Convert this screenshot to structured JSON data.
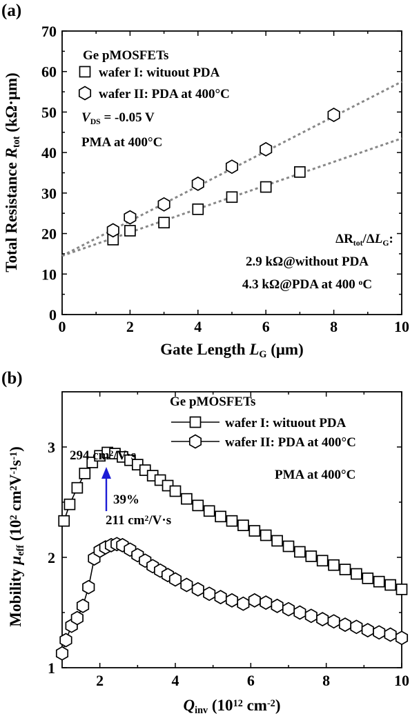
{
  "chart_data": [
    {
      "type": "scatter",
      "panel_label": "(a)",
      "xlabel_parts": [
        "Gate Length ",
        "L",
        "G",
        " (μm)"
      ],
      "ylabel_parts": [
        "Total Resistance ",
        "R",
        "tot",
        " (kΩ·μm)"
      ],
      "xlim": [
        0,
        10
      ],
      "ylim": [
        0,
        70
      ],
      "xticks": [
        0,
        2,
        4,
        6,
        8,
        10
      ],
      "yticks": [
        0,
        10,
        20,
        30,
        40,
        50,
        60,
        70
      ],
      "legend": {
        "title": "Ge pMOSFETs",
        "entries": [
          "wafer I: wituout PDA",
          "wafer II: PDA at 400°C"
        ],
        "placement": "top-left"
      },
      "annotations": {
        "vds_parts": [
          "V",
          "DS",
          " = -0.05 V"
        ],
        "pma": "PMA at 400°C",
        "slope_title_parts": [
          "ΔR",
          "tot",
          "/Δ",
          "L",
          "G",
          ":"
        ],
        "slope_line1": "2.9 kΩ@without PDA",
        "slope_line2_parts": [
          "4.3 kΩ@PDA at 400 ",
          "o",
          "C"
        ]
      },
      "series": [
        {
          "name": "wafer I: wituout PDA",
          "marker": "square",
          "x": [
            1.5,
            2,
            3,
            4,
            5,
            6,
            7
          ],
          "y": [
            18.5,
            20.7,
            22.7,
            26.0,
            29.0,
            31.5,
            35.2
          ]
        },
        {
          "name": "wafer II: PDA at 400°C",
          "marker": "hexagon",
          "x": [
            1.5,
            2,
            3,
            4,
            5,
            6,
            8
          ],
          "y": [
            20.8,
            24.0,
            27.2,
            32.3,
            36.5,
            40.8,
            49.3
          ]
        }
      ],
      "fit_lines": [
        {
          "series": "wafer I: wituout PDA",
          "intercept": 14.5,
          "slope": 2.9
        },
        {
          "series": "wafer II: PDA at 400°C",
          "intercept": 14.5,
          "slope": 4.3
        }
      ],
      "grid": false
    },
    {
      "type": "line",
      "panel_label": "(b)",
      "xlabel_parts": [
        "Q",
        "inv",
        " (10",
        "12",
        " cm",
        "-2",
        ")"
      ],
      "ylabel_parts": [
        "Mobility ",
        "μ",
        "eff",
        " (10",
        "2",
        " cm",
        "2",
        "V",
        "-1",
        "s",
        "-1",
        ")"
      ],
      "xlim": [
        1,
        10
      ],
      "ylim": [
        1,
        3.5
      ],
      "xticks": [
        2,
        4,
        6,
        8,
        10
      ],
      "yticks": [
        1,
        2,
        3
      ],
      "legend": {
        "title": "Ge pMOSFETs",
        "entries": [
          "wafer I: wituout PDA",
          "wafer II: PDA at 400°C"
        ],
        "placement": "top-right"
      },
      "annotations": {
        "pma": "PMA at 400°C",
        "peak1_parts": [
          "294 cm",
          "2",
          "/V·s"
        ],
        "peak2_parts": [
          "211 cm",
          "2",
          "/V·s"
        ],
        "increase": "39%",
        "arrow_color": "#1c1cd6"
      },
      "series": [
        {
          "name": "wafer I: wituout PDA",
          "marker": "square",
          "x": [
            1.05,
            1.2,
            1.4,
            1.6,
            1.8,
            2.0,
            2.2,
            2.4,
            2.6,
            2.8,
            3.0,
            3.2,
            3.4,
            3.6,
            3.8,
            4.0,
            4.3,
            4.6,
            4.9,
            5.2,
            5.5,
            5.8,
            6.1,
            6.4,
            6.7,
            7.0,
            7.3,
            7.6,
            7.9,
            8.2,
            8.5,
            8.8,
            9.1,
            9.4,
            9.7,
            10.0
          ],
          "y": [
            2.33,
            2.48,
            2.63,
            2.76,
            2.86,
            2.92,
            2.95,
            2.94,
            2.91,
            2.88,
            2.84,
            2.79,
            2.74,
            2.7,
            2.65,
            2.6,
            2.53,
            2.47,
            2.42,
            2.37,
            2.33,
            2.29,
            2.24,
            2.2,
            2.15,
            2.1,
            2.05,
            2.01,
            1.97,
            1.93,
            1.89,
            1.85,
            1.81,
            1.78,
            1.75,
            1.71
          ]
        },
        {
          "name": "wafer II: PDA at 400°C",
          "marker": "hexagon",
          "x": [
            1.0,
            1.1,
            1.25,
            1.4,
            1.55,
            1.7,
            1.85,
            2.0,
            2.15,
            2.3,
            2.45,
            2.6,
            2.8,
            3.0,
            3.2,
            3.4,
            3.6,
            3.8,
            4.0,
            4.3,
            4.6,
            4.9,
            5.2,
            5.5,
            5.8,
            6.1,
            6.4,
            6.7,
            7.0,
            7.3,
            7.6,
            7.9,
            8.2,
            8.5,
            8.8,
            9.1,
            9.4,
            9.7,
            10.0
          ],
          "y": [
            1.13,
            1.25,
            1.38,
            1.45,
            1.56,
            1.73,
            1.99,
            2.06,
            2.09,
            2.11,
            2.12,
            2.11,
            2.07,
            2.02,
            1.97,
            1.92,
            1.88,
            1.84,
            1.8,
            1.75,
            1.71,
            1.67,
            1.64,
            1.61,
            1.58,
            1.61,
            1.59,
            1.56,
            1.53,
            1.5,
            1.47,
            1.44,
            1.42,
            1.39,
            1.37,
            1.34,
            1.32,
            1.3,
            1.27
          ]
        }
      ],
      "grid": false
    }
  ]
}
